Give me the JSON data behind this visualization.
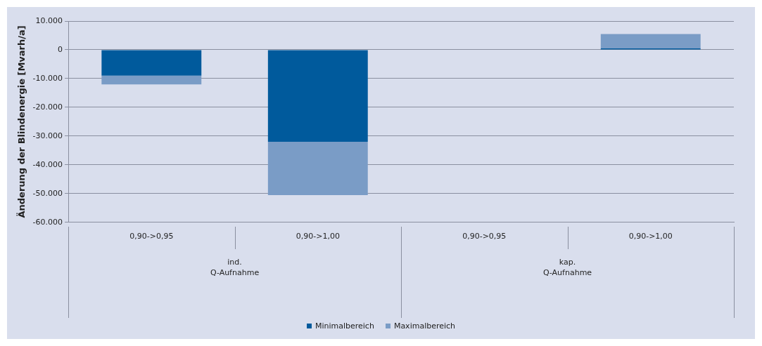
{
  "chart_data": {
    "type": "bar",
    "stacked": true,
    "ylabel": "Änderung der Blindenergie [Mvarh/a]",
    "categories": [
      "0,90->0,95",
      "0,90->1,00",
      "0,90->0,95",
      "0,90->1,00"
    ],
    "series": [
      {
        "name": "Minimalbereich",
        "color": "#005a9c",
        "values": [
          -9000,
          -32000,
          0,
          500
        ]
      },
      {
        "name": "Maximalbereich",
        "color": "#7a9cc6",
        "values": [
          -3000,
          -18500,
          0,
          5000
        ]
      }
    ],
    "ylim": [
      -60000,
      10000
    ],
    "yticks": [
      {
        "value": -60000,
        "label": "-60.000"
      },
      {
        "value": -50000,
        "label": "-50.000"
      },
      {
        "value": -40000,
        "label": "-40.000"
      },
      {
        "value": -30000,
        "label": "-30.000"
      },
      {
        "value": -20000,
        "label": "-20.000"
      },
      {
        "value": -10000,
        "label": "-10.000"
      },
      {
        "value": 0,
        "label": "0"
      },
      {
        "value": 10000,
        "label": "10.000"
      }
    ],
    "annotations": [
      "ind.\nQ-Aufnahme",
      "kap.\nQ-Aufnahme"
    ],
    "grid": "y",
    "legend": "bottom"
  }
}
